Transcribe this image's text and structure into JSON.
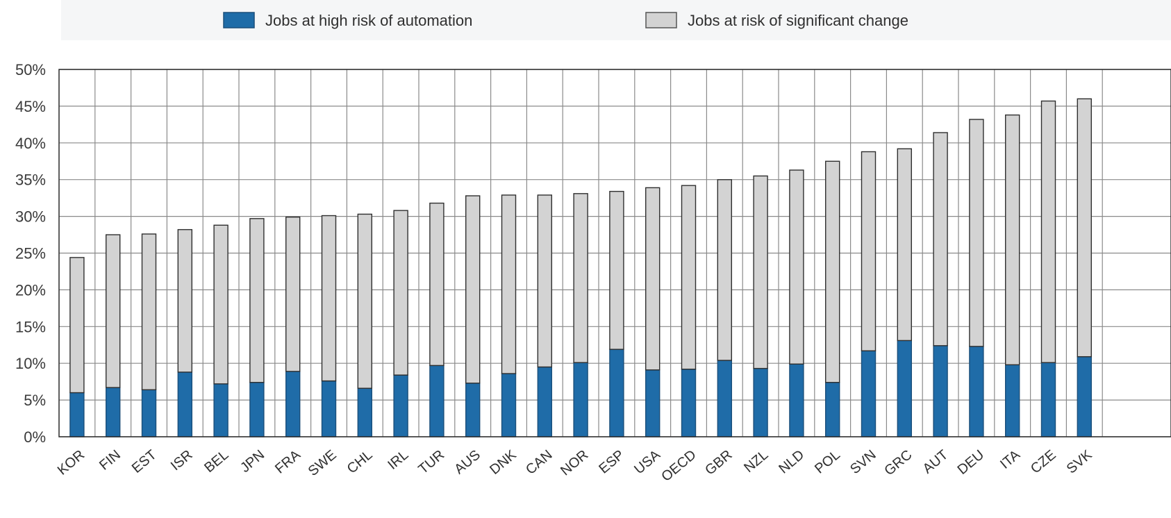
{
  "chart_data": {
    "type": "bar",
    "stacked": true,
    "categories": [
      "KOR",
      "FIN",
      "EST",
      "ISR",
      "BEL",
      "JPN",
      "FRA",
      "SWE",
      "CHL",
      "IRL",
      "TUR",
      "AUS",
      "DNK",
      "CAN",
      "NOR",
      "ESP",
      "USA",
      "OECD",
      "GBR",
      "NZL",
      "NLD",
      "POL",
      "SVN",
      "GRC",
      "AUT",
      "DEU",
      "ITA",
      "CZE",
      "SVK"
    ],
    "series": [
      {
        "name": "Jobs at high risk of automation",
        "color": "#1f6ca8",
        "values": [
          6.0,
          6.7,
          6.4,
          8.8,
          7.2,
          7.4,
          8.9,
          7.6,
          6.6,
          8.4,
          9.7,
          7.3,
          8.6,
          9.5,
          10.1,
          11.9,
          9.1,
          9.2,
          10.4,
          9.3,
          9.9,
          7.4,
          11.7,
          13.1,
          12.4,
          12.3,
          9.8,
          10.1,
          10.9
        ]
      },
      {
        "name": "Jobs at risk of significant change",
        "color": "#d3d3d3",
        "values": [
          18.4,
          20.8,
          21.2,
          19.4,
          21.6,
          22.3,
          21.0,
          22.5,
          23.7,
          22.4,
          22.1,
          25.5,
          24.3,
          23.4,
          23.0,
          21.5,
          24.8,
          25.0,
          24.6,
          26.2,
          26.4,
          30.1,
          27.1,
          26.1,
          29.0,
          30.9,
          34.0,
          35.6,
          35.1
        ]
      }
    ],
    "ylim": [
      0,
      50
    ],
    "yticks": [
      "0%",
      "5%",
      "10%",
      "15%",
      "20%",
      "25%",
      "30%",
      "35%",
      "40%",
      "45%",
      "50%"
    ],
    "grid": true,
    "legend_position": "top"
  }
}
